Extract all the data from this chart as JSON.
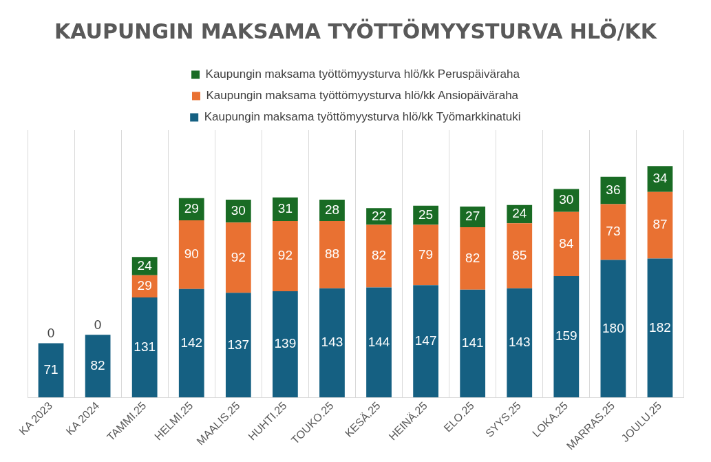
{
  "chart_data": {
    "type": "bar",
    "title": "KAUPUNGIN MAKSAMA TYÖTTÖMYYSTURVA HLÖ/KK",
    "stacked": true,
    "grid": "x",
    "legend": "top",
    "tick_labels": "x",
    "ylim": [
      0,
      350
    ],
    "categories": [
      "KA 2023",
      "KA 2024",
      "TAMMI.25",
      "HELMI.25",
      "MAALIS.25",
      "HUHTI.25",
      "TOUKO.25",
      "KESÄ.25",
      "HEINÄ.25",
      "ELO.25",
      "SYYS.25",
      "LOKA.25",
      "MARRAS.25",
      "JOULU.25"
    ],
    "series": [
      {
        "name": "Kaupungin maksama työttömyysturva hlö/kk Työmarkkinatuki",
        "color": "#156082",
        "values": [
          71,
          82,
          131,
          142,
          137,
          139,
          143,
          144,
          147,
          141,
          143,
          159,
          180,
          182
        ],
        "value_labels": [
          "71",
          "82",
          "131",
          "142",
          "137",
          "139",
          "143",
          "144",
          "147",
          "141",
          "143",
          "159",
          "180",
          "182"
        ]
      },
      {
        "name": "Kaupungin maksama työttömyysturva hlö/kk Ansiopäiväraha",
        "color": "#e97132",
        "values": [
          0,
          0,
          29,
          90,
          92,
          92,
          88,
          82,
          79,
          82,
          85,
          84,
          73,
          87
        ],
        "value_labels": [
          "0",
          "0",
          "29",
          "90",
          "92",
          "92",
          "88",
          "82",
          "79",
          "82",
          "85",
          "84",
          "73",
          "87"
        ]
      },
      {
        "name": "Kaupungin maksama työttömyysturva hlö/kk Peruspäiväraha",
        "color": "#196b24",
        "values": [
          0,
          0,
          24,
          29,
          30,
          31,
          28,
          22,
          25,
          27,
          24,
          30,
          36,
          34
        ],
        "value_labels": [
          null,
          null,
          "24",
          "29",
          "30",
          "31",
          "28",
          "22",
          "25",
          "27",
          "24",
          "30",
          "36",
          "34"
        ]
      }
    ]
  }
}
